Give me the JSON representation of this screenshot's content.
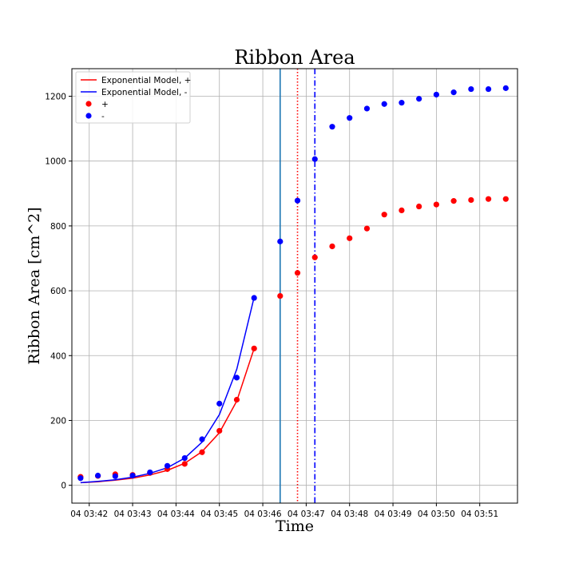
{
  "chart_data": {
    "type": "scatter",
    "title": "Ribbon Area",
    "xlabel": "Time",
    "ylabel": "Ribbon Area [cm^2]",
    "grid": true,
    "legend_position": "top-left",
    "x_ticks": [
      "04 03:42",
      "04 03:43",
      "04 03:44",
      "04 03:45",
      "04 03:46",
      "04 03:47",
      "04 03:48",
      "04 03:49",
      "04 03:50",
      "04 03:51"
    ],
    "x_range_minutes": [
      41.6,
      51.87
    ],
    "y_ticks": [
      0,
      200,
      400,
      600,
      800,
      1000,
      1200
    ],
    "ylim": [
      -55,
      1285
    ],
    "colors": {
      "plus": "#ff0000",
      "minus": "#0000ff",
      "flare_line": "#1f77b4",
      "grid": "#b0b0b0"
    },
    "vertical_lines": [
      {
        "x": 46.4,
        "color": "#1f77b4",
        "style": "solid"
      },
      {
        "x": 46.8,
        "color": "#ff0000",
        "style": "dotted"
      },
      {
        "x": 47.2,
        "color": "#0000ff",
        "style": "dashdot"
      }
    ],
    "series": [
      {
        "name": "Exponential Model, +",
        "kind": "line",
        "color": "#ff0000",
        "x": [
          41.8,
          42.2,
          42.6,
          43.0,
          43.4,
          43.8,
          44.2,
          44.6,
          45.0,
          45.4,
          45.8
        ],
        "y": [
          8,
          11,
          16,
          22,
          32,
          46,
          68,
          104,
          162,
          260,
          422
        ]
      },
      {
        "name": "Exponential Model, -",
        "kind": "line",
        "color": "#0000ff",
        "x": [
          41.8,
          42.2,
          42.6,
          43.0,
          43.4,
          43.8,
          44.2,
          44.6,
          45.0,
          45.4,
          45.8
        ],
        "y": [
          8,
          12,
          17,
          25,
          37,
          54,
          84,
          133,
          218,
          358,
          580
        ]
      },
      {
        "name": "+",
        "kind": "scatter",
        "color": "#ff0000",
        "x": [
          41.8,
          42.2,
          42.6,
          43.0,
          43.4,
          43.8,
          44.2,
          44.6,
          45.0,
          45.4,
          45.8,
          46.4,
          46.8,
          47.2,
          47.6,
          48.0,
          48.4,
          48.8,
          49.2,
          49.6,
          50.0,
          50.4,
          50.8,
          51.2,
          51.6
        ],
        "y": [
          26,
          29,
          34,
          32,
          38,
          50,
          66,
          102,
          168,
          264,
          422,
          584,
          655,
          703,
          737,
          762,
          792,
          835,
          848,
          860,
          866,
          877,
          880,
          883,
          883
        ]
      },
      {
        "name": "-",
        "kind": "scatter",
        "color": "#0000ff",
        "x": [
          41.8,
          42.2,
          42.6,
          43.0,
          43.4,
          43.8,
          44.2,
          44.6,
          45.0,
          45.4,
          45.8,
          46.4,
          46.8,
          47.2,
          47.6,
          48.0,
          48.4,
          48.8,
          49.2,
          49.6,
          50.0,
          50.4,
          50.8,
          51.2,
          51.6
        ],
        "y": [
          22,
          30,
          28,
          30,
          40,
          60,
          84,
          142,
          252,
          332,
          578,
          752,
          878,
          1006,
          1106,
          1133,
          1162,
          1176,
          1180,
          1192,
          1205,
          1212,
          1222,
          1222,
          1225
        ]
      }
    ]
  }
}
